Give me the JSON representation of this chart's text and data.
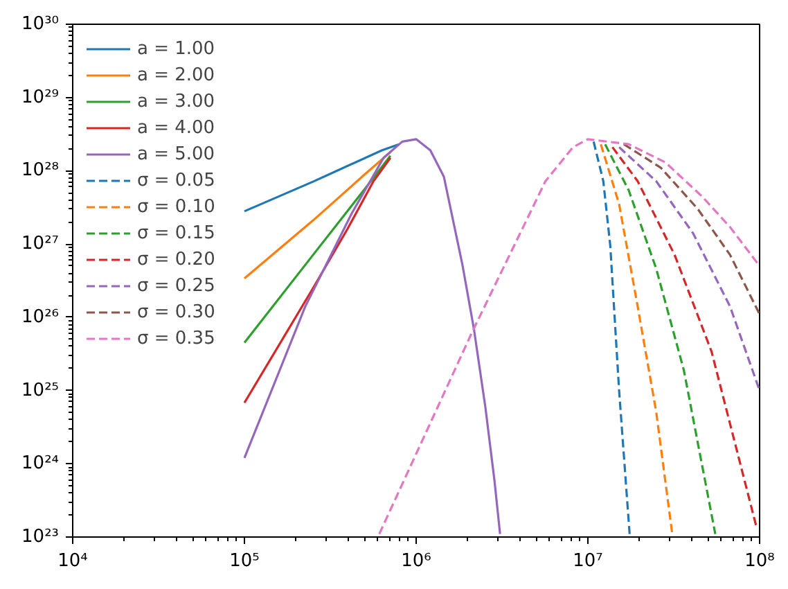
{
  "chart_data": {
    "type": "line",
    "log": "xy",
    "grid": false,
    "legend": "top left",
    "xlim": [
      10000.0,
      100000000.0
    ],
    "ylim": [
      1e+23,
      1e+30
    ],
    "xticks": [
      {
        "value": 10000.0,
        "label": "10⁴"
      },
      {
        "value": 100000.0,
        "label": "10⁵"
      },
      {
        "value": 1000000.0,
        "label": "10⁶"
      },
      {
        "value": 10000000.0,
        "label": "10⁷"
      },
      {
        "value": 100000000.0,
        "label": "10⁸"
      }
    ],
    "yticks": [
      {
        "value": 1e+23,
        "label": "10²³"
      },
      {
        "value": 1e+24,
        "label": "10²⁴"
      },
      {
        "value": 1e+25,
        "label": "10²⁵"
      },
      {
        "value": 1e+26,
        "label": "10²⁶"
      },
      {
        "value": 1e+27,
        "label": "10²⁷"
      },
      {
        "value": 1e+28,
        "label": "10²⁸"
      },
      {
        "value": 1e+29,
        "label": "10²⁹"
      },
      {
        "value": 1e+30,
        "label": "10³⁰"
      }
    ],
    "series": [
      {
        "name": "a = 1.00",
        "color": "#1f77b4",
        "line_style": "solid",
        "x": [
          100000.0,
          251000.0,
          631000.0,
          794000.0
        ],
        "values": [
          2.8e+27,
          7.1e+27,
          1.9e+28,
          2.3e+28
        ]
      },
      {
        "name": "a = 2.00",
        "color": "#ff7f0e",
        "line_style": "solid",
        "x": [
          100000.0,
          251000.0,
          501000.0,
          708000.0
        ],
        "values": [
          3.4e+26,
          2.1e+27,
          8.9e+27,
          1.8e+28
        ]
      },
      {
        "name": "a = 3.00",
        "color": "#2ca02c",
        "line_style": "solid",
        "x": [
          100000.0,
          251000.0,
          501000.0,
          708000.0
        ],
        "values": [
          4.5e+25,
          7.1e+26,
          5.6e+27,
          1.6e+28
        ]
      },
      {
        "name": "a = 4.00",
        "color": "#d62728",
        "line_style": "solid",
        "x": [
          100000.0,
          251000.0,
          398000.0,
          562000.0,
          708000.0
        ],
        "values": [
          6.8e+24,
          2.5e+26,
          1.6e+27,
          7.1e+27,
          1.5e+28
        ]
      },
      {
        "name": "a = 5.00",
        "color": "#9467bd",
        "line_style": "solid",
        "x": [
          100000.0,
          226000.0,
          421000.0,
          646000.0,
          830000.0,
          1000000.0,
          1210000.0,
          1450000.0,
          1860000.0,
          2170000.0,
          2530000.0,
          2860000.0,
          3080000.0
        ],
        "values": [
          1.2e+24,
          1.4e+26,
          2.6e+27,
          1.5e+28,
          2.5e+28,
          2.7e+28,
          1.9e+28,
          8.3e+27,
          5.2e+26,
          6.9e+25,
          5.9e+24,
          5.8e+23,
          1.1e+23
        ]
      },
      {
        "name": "σ = 0.05",
        "color": "#1f77b4",
        "line_style": "dashed",
        "x": [
          10800000.0,
          12300000.0,
          13500000.0,
          15200000.0,
          17500000.0
        ],
        "values": [
          2.5e+28,
          7.2e+27,
          9.5e+26,
          1e+25,
          1.1e+23
        ]
      },
      {
        "name": "σ = 0.10",
        "color": "#ff7f0e",
        "line_style": "dashed",
        "x": [
          11900000.0,
          15200000.0,
          19500000.0,
          25000000.0,
          31000000.0
        ],
        "values": [
          2.3e+28,
          3.5e+27,
          1.4e+26,
          5.1e+24,
          1.1e+23
        ]
      },
      {
        "name": "σ = 0.15",
        "color": "#2ca02c",
        "line_style": "dashed",
        "x": [
          12600000.0,
          17300000.0,
          25000000.0,
          36200000.0,
          55200000.0
        ],
        "values": [
          2.3e+28,
          5.4e+27,
          4.6e+26,
          1.9e+25,
          1.1e+23
        ]
      },
      {
        "name": "σ = 0.20",
        "color": "#d62728",
        "line_style": "dashed",
        "x": [
          13900000.0,
          19500000.0,
          32000000.0,
          52500000.0,
          96400000.0
        ],
        "values": [
          2.1e+28,
          7.2e+27,
          7.1e+26,
          3.4e+25,
          1.3e+23
        ]
      },
      {
        "name": "σ = 0.25",
        "color": "#9467bd",
        "line_style": "dashed",
        "x": [
          15200000.0,
          25000000.0,
          41000000.0,
          67300000.0,
          100000000.0
        ],
        "values": [
          2.1e+28,
          7.2e+27,
          1.4e+27,
          1.4e+26,
          1e+25
        ]
      },
      {
        "name": "σ = 0.30",
        "color": "#8c564b",
        "line_style": "dashed",
        "x": [
          16200000.0,
          26600000.0,
          43700000.0,
          67300000.0,
          100000000.0
        ],
        "values": [
          2.3e+28,
          1.1e+28,
          3e+27,
          7.1e+26,
          1.1e+26
        ]
      },
      {
        "name": "σ = 0.35",
        "color": "#e377c2",
        "line_style": "dashed",
        "x": [
          610000.0,
          2100000.0,
          2820000.0,
          3670000.0,
          5660000.0,
          8200000.0,
          10000000.0,
          17300000.0,
          28300000.0,
          46500000.0,
          67300000.0,
          100000000.0
        ],
        "values": [
          1.1e+23,
          6e+25,
          2.5e+26,
          8.9e+26,
          7.2e+27,
          2.1e+28,
          2.7e+28,
          2.3e+28,
          1.3e+28,
          4.4e+27,
          1.7e+27,
          5e+26
        ]
      }
    ]
  }
}
